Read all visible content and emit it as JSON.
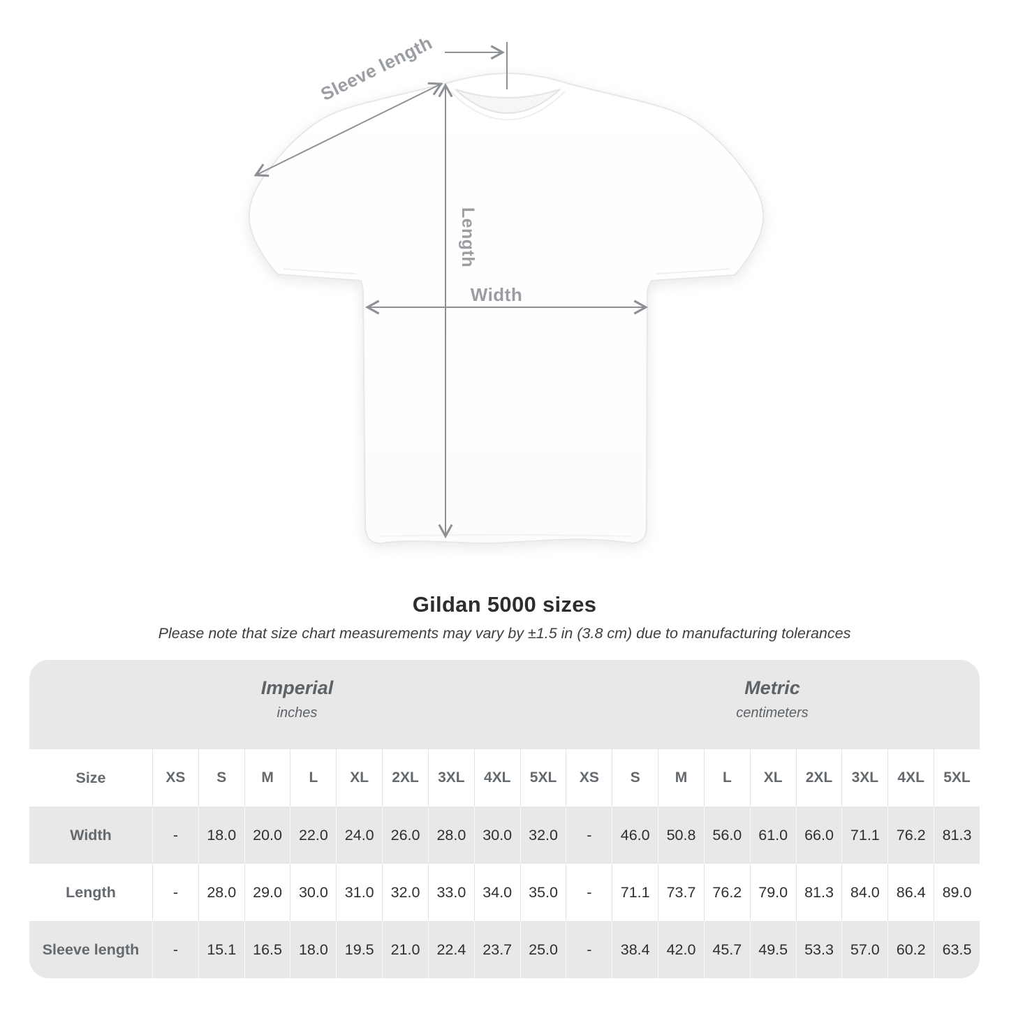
{
  "page": {
    "background": "#ffffff"
  },
  "diagram": {
    "subject": "white-tshirt-front-flat-lay",
    "arrow_color": "#8d9196",
    "label_color": "#9a9ea3",
    "labels": {
      "sleeve_length": "Sleeve length",
      "length": "Length",
      "width": "Width"
    }
  },
  "heading": {
    "title": "Gildan 5000 sizes",
    "subtitle": "Please note that size chart measurements may vary by ±1.5 in (3.8 cm) due to manufacturing tolerances"
  },
  "table": {
    "unit_groups": [
      {
        "label": "Imperial",
        "sublabel": "inches"
      },
      {
        "label": "Metric",
        "sublabel": "centimeters"
      }
    ],
    "size_col_header": "Size",
    "sizes": [
      "XS",
      "S",
      "M",
      "L",
      "XL",
      "2XL",
      "3XL",
      "4XL",
      "5XL"
    ],
    "rows": [
      {
        "label": "Width",
        "imperial": [
          "-",
          "18.0",
          "20.0",
          "22.0",
          "24.0",
          "26.0",
          "28.0",
          "30.0",
          "32.0"
        ],
        "metric": [
          "-",
          "46.0",
          "50.8",
          "56.0",
          "61.0",
          "66.0",
          "71.1",
          "76.2",
          "81.3"
        ]
      },
      {
        "label": "Length",
        "imperial": [
          "-",
          "28.0",
          "29.0",
          "30.0",
          "31.0",
          "32.0",
          "33.0",
          "34.0",
          "35.0"
        ],
        "metric": [
          "-",
          "71.1",
          "73.7",
          "76.2",
          "79.0",
          "81.3",
          "84.0",
          "86.4",
          "89.0"
        ]
      },
      {
        "label": "Sleeve length",
        "imperial": [
          "-",
          "15.1",
          "16.5",
          "18.0",
          "19.5",
          "21.0",
          "22.4",
          "23.7",
          "25.0"
        ],
        "metric": [
          "-",
          "38.4",
          "42.0",
          "45.7",
          "49.5",
          "53.3",
          "57.0",
          "60.2",
          "63.5"
        ]
      }
    ],
    "colors": {
      "band_bg": "#e8e8e8",
      "row_alt_bg": "#e8e8e8",
      "row_bg": "#ffffff",
      "header_text": "#64696e",
      "value_text": "#2f2f2f"
    }
  }
}
